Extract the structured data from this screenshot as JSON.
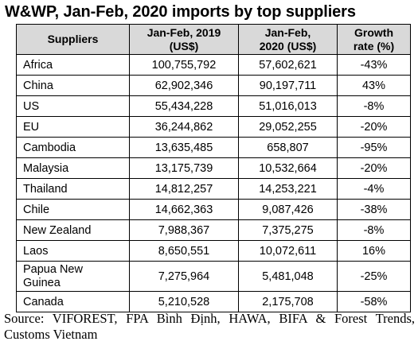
{
  "title": "W&WP, Jan-Feb, 2020 imports by top suppliers",
  "table": {
    "headers": {
      "supplier": "Suppliers",
      "y2019_line1": "Jan-Feb, 2019",
      "y2019_line2": "(US$)",
      "y2020_line1": "Jan-Feb,",
      "y2020_line2": "2020 (US$)",
      "growth_line1": "Growth",
      "growth_line2": "rate (%)"
    },
    "rows": [
      {
        "supplier": "Africa",
        "v2019": "100,755,792",
        "v2020": "57,602,621",
        "growth": "-43%"
      },
      {
        "supplier": "China",
        "v2019": "62,902,346",
        "v2020": "90,197,711",
        "growth": "43%"
      },
      {
        "supplier": "US",
        "v2019": "55,434,228",
        "v2020": "51,016,013",
        "growth": "-8%"
      },
      {
        "supplier": "EU",
        "v2019": "36,244,862",
        "v2020": "29,052,255",
        "growth": "-20%"
      },
      {
        "supplier": "Cambodia",
        "v2019": "13,635,485",
        "v2020": "658,807",
        "growth": "-95%"
      },
      {
        "supplier": "Malaysia",
        "v2019": "13,175,739",
        "v2020": "10,532,664",
        "growth": "-20%"
      },
      {
        "supplier": "Thailand",
        "v2019": "14,812,257",
        "v2020": "14,253,221",
        "growth": "-4%"
      },
      {
        "supplier": "Chile",
        "v2019": "14,662,363",
        "v2020": "9,087,426",
        "growth": "-38%"
      },
      {
        "supplier": "New Zealand",
        "v2019": "7,988,367",
        "v2020": "7,375,275",
        "growth": "-8%"
      },
      {
        "supplier": "Laos",
        "v2019": "8,650,551",
        "v2020": "10,072,611",
        "growth": "16%"
      },
      {
        "supplier_line1": "Papua New",
        "supplier_line2": "Guinea",
        "v2019": "7,275,964",
        "v2020": "5,481,048",
        "growth": "-25%"
      },
      {
        "supplier": "Canada",
        "v2019": "5,210,528",
        "v2020": "2,175,708",
        "growth": "-58%"
      }
    ]
  },
  "source": "Source: VIFOREST, FPA Bình Định, HAWA, BIFA & Forest Trends, Customs Vietnam"
}
